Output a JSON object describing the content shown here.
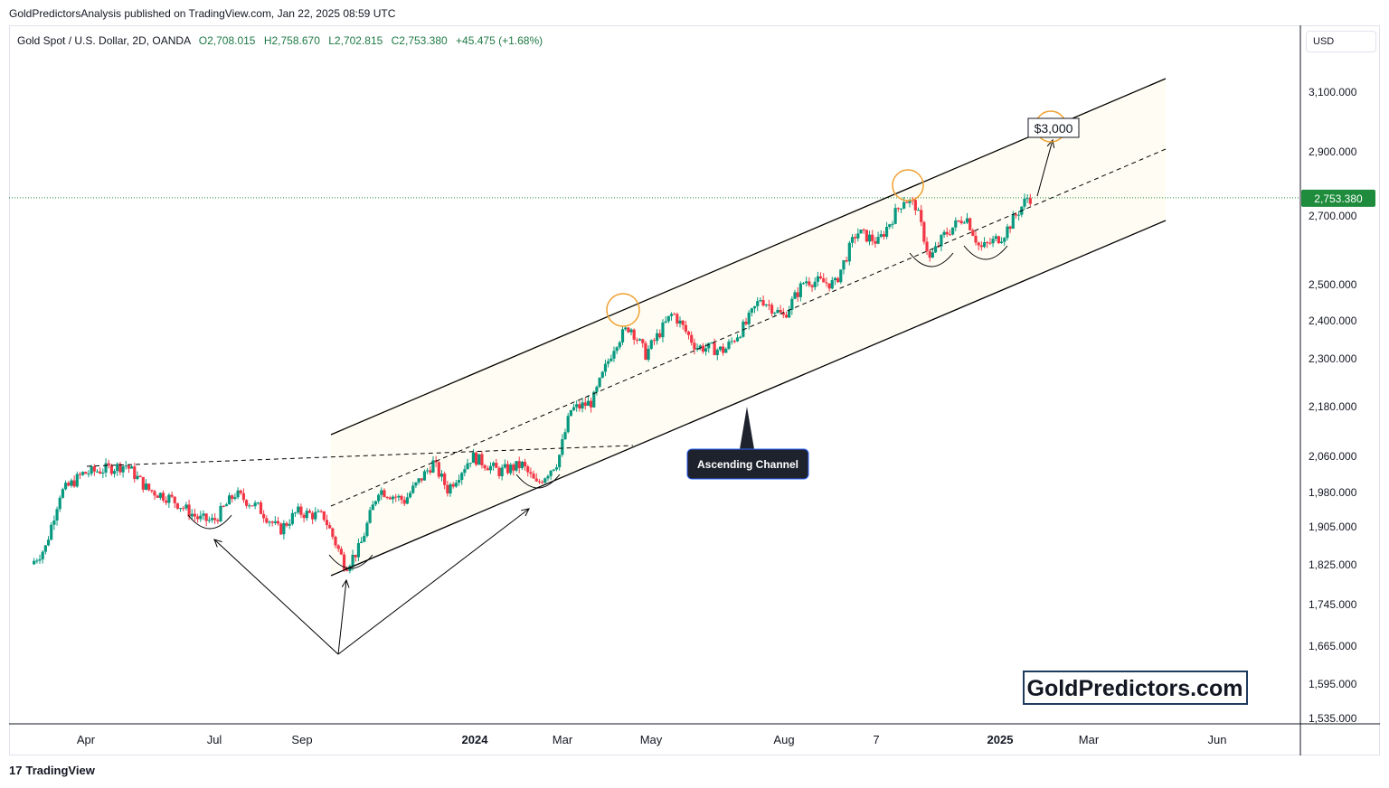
{
  "header": {
    "published": "GoldPredictorsAnalysis published on TradingView.com, Jan 22, 2025 08:59 UTC"
  },
  "legend": {
    "symbol": "Gold Spot / U.S. Dollar, 2D, OANDA",
    "open": "O2,708.015",
    "high": "H2,758.670",
    "low": "L2,702.815",
    "close": "C2,753.380",
    "change": "+45.475 (+1.68%)"
  },
  "currency": "USD",
  "footer": {
    "logo_text": "TradingView"
  },
  "colors": {
    "up": "#089981",
    "down": "#f23645",
    "channel_fill": "#fffdf3",
    "price_line": "#1e8c3c",
    "highlight": "#f0a030"
  },
  "chart_data": {
    "type": "candlestick",
    "x_ticks": [
      "Apr",
      "Jul",
      "Sep",
      "2024",
      "Mar",
      "May",
      "Aug",
      "7",
      "2025",
      "Mar",
      "Jun"
    ],
    "y_ticks": [
      "3,100.000",
      "2,900.000",
      "2,700.000",
      "2,500.000",
      "2,400.000",
      "2,300.000",
      "2,180.000",
      "2,060.000",
      "1,980.000",
      "1,905.000",
      "1,825.000",
      "1,745.000",
      "1,665.000",
      "1,595.000",
      "1,535.000"
    ],
    "y_scale": "log",
    "last_price_label": "2,753.380",
    "price_path": [
      [
        "2023-02-28",
        1825
      ],
      [
        "2023-03-10",
        1860
      ],
      [
        "2023-03-20",
        1975
      ],
      [
        "2023-04-05",
        2020
      ],
      [
        "2023-05-05",
        2040
      ],
      [
        "2023-05-20",
        1985
      ],
      [
        "2023-06-05",
        1965
      ],
      [
        "2023-06-25",
        1920
      ],
      [
        "2023-07-05",
        1915
      ],
      [
        "2023-07-20",
        1975
      ],
      [
        "2023-08-05",
        1945
      ],
      [
        "2023-08-20",
        1895
      ],
      [
        "2023-09-01",
        1935
      ],
      [
        "2023-09-20",
        1925
      ],
      [
        "2023-10-05",
        1820
      ],
      [
        "2023-10-15",
        1860
      ],
      [
        "2023-10-28",
        1985
      ],
      [
        "2023-11-15",
        1960
      ],
      [
        "2023-12-05",
        2045
      ],
      [
        "2023-12-15",
        1985
      ],
      [
        "2024-01-01",
        2060
      ],
      [
        "2024-01-20",
        2025
      ],
      [
        "2024-02-05",
        2040
      ],
      [
        "2024-02-15",
        1995
      ],
      [
        "2024-03-01",
        2050
      ],
      [
        "2024-03-10",
        2170
      ],
      [
        "2024-03-25",
        2190
      ],
      [
        "2024-04-10",
        2340
      ],
      [
        "2024-04-20",
        2385
      ],
      [
        "2024-05-01",
        2310
      ],
      [
        "2024-05-20",
        2420
      ],
      [
        "2024-06-05",
        2330
      ],
      [
        "2024-06-25",
        2320
      ],
      [
        "2024-07-10",
        2390
      ],
      [
        "2024-07-20",
        2460
      ],
      [
        "2024-08-05",
        2410
      ],
      [
        "2024-08-20",
        2510
      ],
      [
        "2024-09-10",
        2500
      ],
      [
        "2024-09-25",
        2650
      ],
      [
        "2024-10-10",
        2620
      ],
      [
        "2024-10-28",
        2750
      ],
      [
        "2024-11-05",
        2730
      ],
      [
        "2024-11-15",
        2570
      ],
      [
        "2024-11-25",
        2640
      ],
      [
        "2024-12-10",
        2700
      ],
      [
        "2024-12-20",
        2600
      ],
      [
        "2025-01-05",
        2640
      ],
      [
        "2025-01-22",
        2753.38
      ]
    ],
    "annotations": [
      {
        "label": "Ascending Channel"
      },
      {
        "label": "$3,000"
      },
      {
        "label": "GoldPredictors.com"
      }
    ]
  }
}
